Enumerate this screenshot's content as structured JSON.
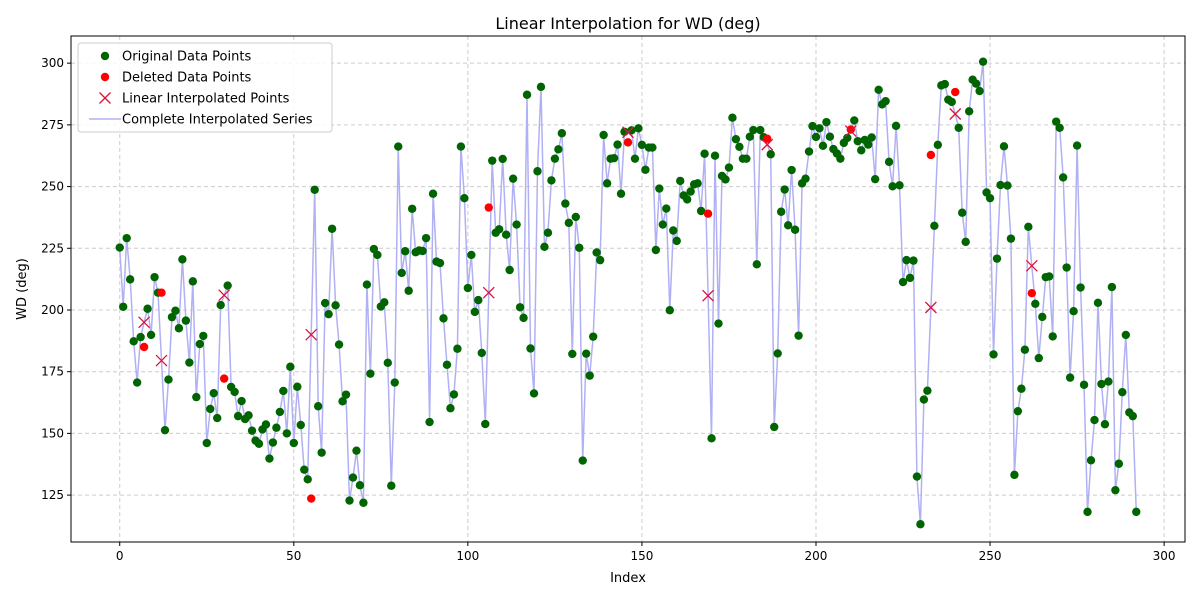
{
  "chart_data": {
    "type": "scatter",
    "title": "Linear Interpolation for WD (deg)",
    "xlabel": "Index",
    "ylabel": "WD (deg)",
    "xlim": [
      -14,
      306
    ],
    "ylim": [
      106,
      311
    ],
    "xticks": [
      0,
      50,
      100,
      150,
      200,
      250,
      300
    ],
    "yticks": [
      125,
      150,
      175,
      200,
      225,
      250,
      275,
      300
    ],
    "grid": true,
    "legend_position": "top-left",
    "colors": {
      "original": "#006400",
      "deleted": "#ff0000",
      "interpolated": "#dc143c",
      "series_line": "#b0b0f5",
      "grid": "#cccccc"
    },
    "legend": [
      {
        "key": "original",
        "label": "Original Data Points"
      },
      {
        "key": "deleted",
        "label": "Deleted Data Points"
      },
      {
        "key": "interpolated",
        "label": "Linear Interpolated Points"
      },
      {
        "key": "series",
        "label": "Complete Interpolated Series"
      }
    ],
    "complete_series": [
      225.3,
      201.3,
      229.1,
      212.4,
      187.3,
      170.6,
      189.0,
      195.0,
      200.5,
      189.9,
      213.3,
      207.0,
      179.5,
      151.3,
      171.8,
      197.1,
      199.7,
      192.6,
      220.5,
      195.7,
      178.7,
      211.6,
      164.7,
      186.2,
      189.5,
      146.1,
      159.9,
      166.3,
      156.2,
      202.0,
      206.0,
      209.9,
      168.8,
      166.8,
      157.0,
      163.1,
      155.8,
      157.3,
      151.1,
      147.1,
      145.8,
      151.6,
      153.6,
      139.8,
      146.3,
      152.3,
      158.7,
      167.2,
      150.0,
      177.0,
      146.1,
      168.9,
      153.4,
      135.3,
      131.4,
      190.0,
      248.7,
      161.0,
      142.2,
      202.8,
      198.3,
      232.9,
      201.9,
      186.0,
      163.0,
      165.7,
      122.8,
      132.1,
      143.0,
      129.0,
      121.9,
      210.3,
      174.2,
      224.7,
      222.3,
      201.4,
      203.1,
      178.6,
      128.8,
      170.6,
      266.2,
      215.0,
      223.8,
      207.8,
      241.0,
      223.4,
      224.1,
      223.9,
      229.1,
      154.6,
      247.1,
      219.6,
      219.0,
      196.6,
      177.8,
      160.2,
      165.8,
      184.3,
      266.2,
      245.3,
      208.9,
      222.3,
      199.2,
      204.0,
      182.6,
      153.8,
      207.0,
      260.5,
      231.3,
      232.7,
      261.2,
      230.5,
      216.2,
      253.2,
      234.6,
      201.1,
      196.8,
      287.2,
      184.4,
      166.2,
      256.2,
      290.4,
      225.6,
      231.3,
      252.5,
      261.3,
      265.1,
      271.6,
      243.1,
      235.3,
      182.2,
      237.7,
      225.2,
      139.0,
      182.3,
      173.4,
      189.2,
      223.3,
      220.2,
      270.9,
      251.3,
      261.3,
      261.5,
      267.0,
      247.1,
      272.2,
      272.0,
      272.8,
      261.3,
      273.6,
      266.9,
      256.8,
      265.8,
      265.8,
      224.3,
      249.2,
      234.6,
      241.1,
      199.9,
      232.2,
      228.0,
      252.3,
      246.4,
      244.8,
      248.0,
      250.9,
      251.3,
      240.1,
      263.3,
      205.8,
      148.0,
      262.5,
      194.5,
      254.3,
      252.9,
      257.7,
      277.9,
      269.2,
      266.1,
      261.3,
      261.3,
      270.2,
      272.9,
      218.5,
      272.9,
      270.0,
      267.0,
      263.1,
      152.6,
      182.4,
      239.8,
      248.8,
      234.3,
      256.7,
      232.5,
      189.6,
      251.3,
      253.2,
      264.2,
      274.5,
      270.1,
      273.6,
      266.5,
      276.1,
      270.2,
      265.2,
      263.4,
      261.3,
      267.7,
      269.7,
      272.5,
      276.8,
      268.4,
      264.7,
      268.9,
      267.0,
      269.9,
      253.0,
      289.2,
      283.3,
      284.6,
      260.0,
      250.1,
      274.6,
      250.5,
      211.3,
      220.2,
      213.0,
      220.0,
      132.5,
      113.2,
      163.7,
      167.3,
      201.0,
      234.1,
      266.9,
      291.0,
      291.5,
      285.2,
      284.3,
      279.4,
      273.8,
      239.4,
      227.6,
      280.5,
      293.3,
      291.7,
      288.7,
      300.6,
      247.6,
      245.3,
      182.0,
      220.8,
      250.6,
      266.3,
      250.4,
      228.9,
      133.2,
      159.0,
      168.1,
      183.9,
      233.7,
      217.9,
      202.5,
      180.5,
      197.2,
      213.3,
      213.6,
      189.3,
      276.3,
      273.8,
      253.7,
      217.2,
      172.6,
      199.5,
      266.6,
      209.1,
      169.7,
      118.2,
      139.1,
      155.4,
      202.9,
      170.0,
      153.7,
      171.0,
      209.3,
      127.0,
      137.7,
      166.7,
      189.9,
      158.5,
      157.0,
      118.2
    ],
    "deleted_points": [
      {
        "x": 7,
        "y": 185.0
      },
      {
        "x": 12,
        "y": 207.0
      },
      {
        "x": 30,
        "y": 172.2
      },
      {
        "x": 55,
        "y": 123.6
      },
      {
        "x": 106,
        "y": 241.5
      },
      {
        "x": 146,
        "y": 267.9
      },
      {
        "x": 169,
        "y": 239.0
      },
      {
        "x": 186,
        "y": 269.4
      },
      {
        "x": 210,
        "y": 273.1
      },
      {
        "x": 233,
        "y": 262.8
      },
      {
        "x": 240,
        "y": 288.3
      },
      {
        "x": 262,
        "y": 206.8
      }
    ],
    "interpolated_points": [
      {
        "x": 7,
        "y": 195.0
      },
      {
        "x": 12,
        "y": 179.5
      },
      {
        "x": 30,
        "y": 206.0
      },
      {
        "x": 55,
        "y": 190.0
      },
      {
        "x": 106,
        "y": 207.0
      },
      {
        "x": 146,
        "y": 272.0
      },
      {
        "x": 169,
        "y": 205.8
      },
      {
        "x": 186,
        "y": 267.0
      },
      {
        "x": 210,
        "y": 272.5
      },
      {
        "x": 233,
        "y": 201.0
      },
      {
        "x": 240,
        "y": 279.4
      },
      {
        "x": 262,
        "y": 217.9
      }
    ]
  }
}
